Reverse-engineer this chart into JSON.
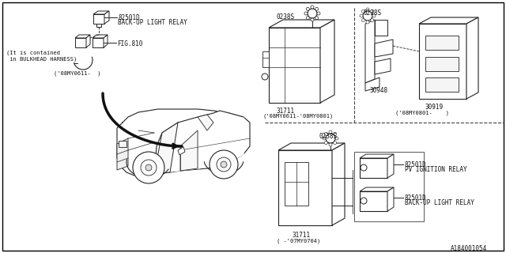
{
  "bg_color": "#FFFFFF",
  "line_color": "#222222",
  "text_color": "#111111",
  "diagram_id": "A184001054",
  "dashed_color": "#444444",
  "font_size": 5.5,
  "font_size_sm": 5.0,
  "lw": 0.7,
  "lw_thick": 2.5,
  "labels": {
    "relay_top_id": "82501D",
    "relay_top_name": "BACK-UP LIGHT RELAY",
    "fig810": "FIG.810",
    "bulkhead1": "(It is contained",
    "bulkhead2": " in BULKHEAD HARNESS)",
    "date_tl": "('08MY0611-  )",
    "part_0238S": "0238S",
    "part_31711": "31711",
    "date_mid": "('08MY0611-'08MY0801)",
    "part_30948": "30948",
    "part_30919": "30919",
    "date_r": "('08MY0801-    )",
    "ign_id": "82501D",
    "ign_name": "PV IGNITION RELAY",
    "back_id": "82501D",
    "back_name": "BACK-UP LIGHT RELAY",
    "part_31711b": "31711",
    "date_bot": "( -'07MY0704)",
    "diagram_id": "A184001054"
  }
}
